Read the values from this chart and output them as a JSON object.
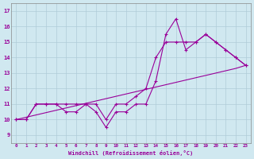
{
  "xlabel": "Windchill (Refroidissement éolien,°C)",
  "x": [
    0,
    1,
    2,
    3,
    4,
    5,
    6,
    7,
    8,
    9,
    10,
    11,
    12,
    13,
    14,
    15,
    16,
    17,
    18,
    19,
    20,
    21,
    22,
    23
  ],
  "line_trend": [
    10,
    10.15,
    10.3,
    10.45,
    10.6,
    10.75,
    10.9,
    11.05,
    11.2,
    11.35,
    11.5,
    11.65,
    11.8,
    11.95,
    12.1,
    12.25,
    12.4,
    12.55,
    12.7,
    12.85,
    13.0,
    13.15,
    13.3,
    13.5
  ],
  "line_zigzag": [
    10,
    10,
    11,
    11,
    11,
    10.5,
    10.5,
    11,
    10.5,
    9.5,
    10.5,
    10.5,
    11,
    11,
    12.5,
    15.5,
    16.5,
    14.5,
    15,
    15.5,
    15,
    14.5,
    14,
    13.5
  ],
  "line_smooth": [
    10,
    10,
    11,
    11,
    11,
    11,
    11,
    11,
    11,
    10,
    11,
    11,
    11.5,
    12,
    14,
    15,
    15,
    15,
    15,
    15.5,
    15,
    14.5,
    14,
    13.5
  ],
  "color": "#990099",
  "bg_color": "#d0e8f0",
  "grid_color": "#b0ccd8",
  "ylim": [
    8.5,
    17.5
  ],
  "xlim": [
    -0.5,
    23.5
  ],
  "yticks": [
    9,
    10,
    11,
    12,
    13,
    14,
    15,
    16,
    17
  ],
  "xticks": [
    0,
    1,
    2,
    3,
    4,
    5,
    6,
    7,
    8,
    9,
    10,
    11,
    12,
    13,
    14,
    15,
    16,
    17,
    18,
    19,
    20,
    21,
    22,
    23
  ]
}
